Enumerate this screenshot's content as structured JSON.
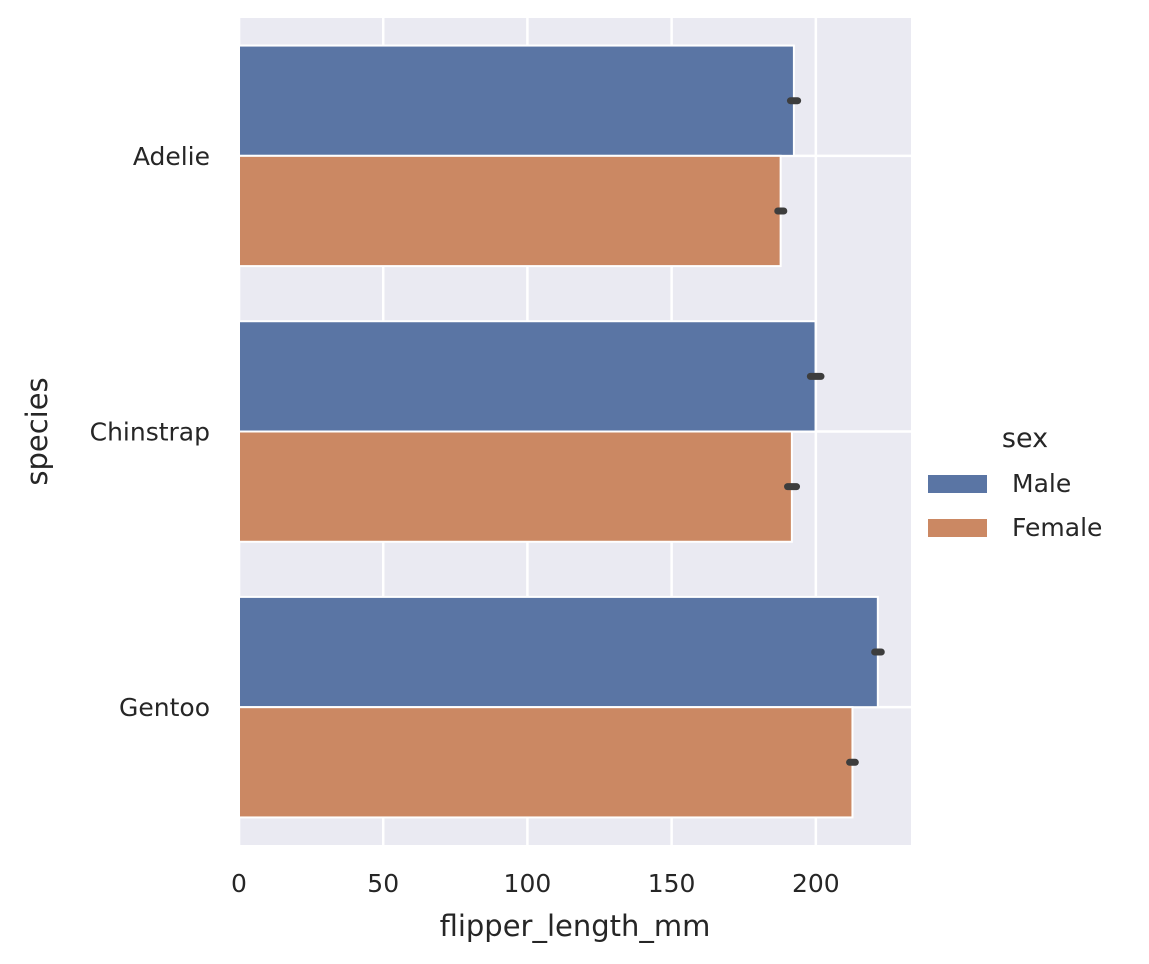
{
  "chart_data": {
    "type": "bar",
    "orientation": "horizontal",
    "categories": [
      "Adelie",
      "Chinstrap",
      "Gentoo"
    ],
    "series": [
      {
        "name": "Male",
        "values": [
          192.4,
          199.9,
          221.5
        ],
        "ci": [
          [
            191.2,
            193.7
          ],
          [
            198.1,
            201.8
          ],
          [
            220.4,
            222.7
          ]
        ],
        "color": "#5a75a4"
      },
      {
        "name": "Female",
        "values": [
          187.8,
          191.7,
          212.7
        ],
        "ci": [
          [
            186.8,
            188.9
          ],
          [
            190.2,
            193.3
          ],
          [
            211.7,
            213.7
          ]
        ],
        "color": "#cb8863"
      }
    ],
    "xlabel": "flipper_length_mm",
    "ylabel": "species",
    "xticks": [
      0,
      50,
      100,
      150,
      200
    ],
    "xlim": [
      0,
      233
    ],
    "legend": {
      "title": "sex",
      "placement": "right"
    },
    "grid": true,
    "background": "#eaeaf2"
  }
}
